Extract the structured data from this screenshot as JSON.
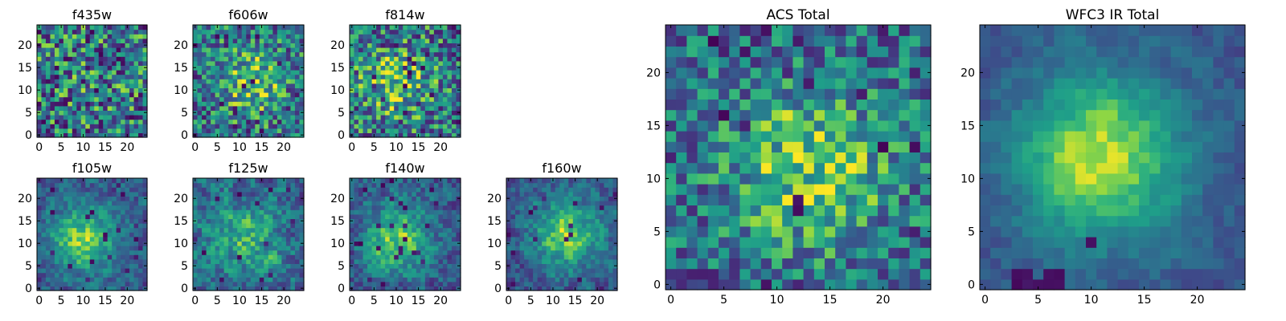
{
  "colormap": "viridis",
  "colors": {
    "low": "#440154",
    "mid_low": "#3b528b",
    "mid": "#21918c",
    "mid_high": "#5ec962",
    "high": "#fde725",
    "frame": "#000000",
    "background": "#ffffff"
  },
  "chart_data": [
    {
      "type": "heatmap",
      "title": "f435w",
      "grid": [
        25,
        25
      ],
      "xlim": [
        0,
        24
      ],
      "ylim": [
        0,
        24
      ],
      "xticks": [
        "0",
        "5",
        "10",
        "15",
        "20"
      ],
      "yticks": [
        "0",
        "5",
        "10",
        "15",
        "20"
      ],
      "texture": "noise",
      "center": [
        12,
        12
      ],
      "blob_strength": 0.05,
      "noise": 0.55,
      "base": 0.45,
      "seed": 11,
      "dark_pixels": 0.06,
      "grid_lines": false,
      "legend": "none"
    },
    {
      "type": "heatmap",
      "title": "f606w",
      "grid": [
        25,
        25
      ],
      "xlim": [
        0,
        24
      ],
      "ylim": [
        0,
        24
      ],
      "xticks": [
        "0",
        "5",
        "10",
        "15",
        "20"
      ],
      "yticks": [
        "0",
        "5",
        "10",
        "15",
        "20"
      ],
      "texture": "noise",
      "center": [
        13,
        12
      ],
      "blob_strength": 0.3,
      "noise": 0.45,
      "base": 0.45,
      "seed": 23,
      "dark_pixels": 0.04,
      "grid_lines": false,
      "legend": "none"
    },
    {
      "type": "heatmap",
      "title": "f814w",
      "grid": [
        25,
        25
      ],
      "xlim": [
        0,
        24
      ],
      "ylim": [
        0,
        24
      ],
      "xticks": [
        "0",
        "5",
        "10",
        "15",
        "20"
      ],
      "yticks": [
        "0",
        "5",
        "10",
        "15",
        "20"
      ],
      "texture": "noise",
      "center": [
        10,
        12
      ],
      "blob_strength": 0.3,
      "noise": 0.5,
      "base": 0.45,
      "seed": 37,
      "dark_pixels": 0.05,
      "grid_lines": false,
      "legend": "none"
    },
    {
      "type": "heatmap",
      "title": "f105w",
      "grid": [
        25,
        25
      ],
      "xlim": [
        0,
        24
      ],
      "ylim": [
        0,
        24
      ],
      "xticks": [
        "0",
        "5",
        "10",
        "15",
        "20"
      ],
      "yticks": [
        "0",
        "5",
        "10",
        "15",
        "20"
      ],
      "texture": "smooth",
      "center": [
        10,
        11
      ],
      "blob_strength": 0.55,
      "noise": 0.35,
      "base": 0.3,
      "seed": 41,
      "dark_pixels": 0.03,
      "grid_lines": false,
      "legend": "none"
    },
    {
      "type": "heatmap",
      "title": "f125w",
      "grid": [
        25,
        25
      ],
      "xlim": [
        0,
        24
      ],
      "ylim": [
        0,
        24
      ],
      "xticks": [
        "0",
        "5",
        "10",
        "15",
        "20"
      ],
      "yticks": [
        "0",
        "5",
        "10",
        "15",
        "20"
      ],
      "texture": "smooth",
      "center": [
        12,
        11
      ],
      "blob_strength": 0.3,
      "noise": 0.45,
      "base": 0.4,
      "seed": 53,
      "dark_pixels": 0.03,
      "grid_lines": false,
      "legend": "none"
    },
    {
      "type": "heatmap",
      "title": "f140w",
      "grid": [
        25,
        25
      ],
      "xlim": [
        0,
        24
      ],
      "ylim": [
        0,
        24
      ],
      "xticks": [
        "0",
        "5",
        "10",
        "15",
        "20"
      ],
      "yticks": [
        "0",
        "5",
        "10",
        "15",
        "20"
      ],
      "texture": "smooth",
      "center": [
        10,
        11
      ],
      "blob_strength": 0.5,
      "noise": 0.38,
      "base": 0.32,
      "seed": 67,
      "dark_pixels": 0.03,
      "grid_lines": false,
      "legend": "none"
    },
    {
      "type": "heatmap",
      "title": "f160w",
      "grid": [
        25,
        25
      ],
      "xlim": [
        0,
        24
      ],
      "ylim": [
        0,
        24
      ],
      "xticks": [
        "0",
        "5",
        "10",
        "15",
        "20"
      ],
      "yticks": [
        "0",
        "5",
        "10",
        "15",
        "20"
      ],
      "texture": "smooth",
      "center": [
        13,
        12
      ],
      "blob_strength": 0.55,
      "noise": 0.35,
      "base": 0.3,
      "seed": 79,
      "dark_pixels": 0.03,
      "grid_lines": false,
      "legend": "none"
    },
    {
      "type": "heatmap",
      "title": "ACS Total",
      "grid": [
        25,
        25
      ],
      "xlim": [
        0,
        24
      ],
      "ylim": [
        0,
        24
      ],
      "xticks": [
        "0",
        "5",
        "10",
        "15",
        "20"
      ],
      "yticks": [
        "0",
        "5",
        "10",
        "15",
        "20"
      ],
      "texture": "noise",
      "center": [
        13,
        11
      ],
      "blob_strength": 0.4,
      "noise": 0.4,
      "base": 0.4,
      "seed": 97,
      "dark_pixels": 0.035,
      "grid_lines": false,
      "legend": "none"
    },
    {
      "type": "heatmap",
      "title": "WFC3 IR Total",
      "grid": [
        25,
        25
      ],
      "xlim": [
        0,
        24
      ],
      "ylim": [
        0,
        24
      ],
      "xticks": [
        "0",
        "5",
        "10",
        "15",
        "20"
      ],
      "yticks": [
        "0",
        "5",
        "10",
        "15",
        "20"
      ],
      "texture": "smooth",
      "center": [
        11,
        12
      ],
      "blob_strength": 0.65,
      "noise": 0.18,
      "base": 0.3,
      "seed": 101,
      "dark_pixels": 0.0,
      "dark_region": [
        [
          3,
          0
        ],
        [
          4,
          0
        ],
        [
          5,
          0
        ],
        [
          6,
          0
        ],
        [
          7,
          0
        ],
        [
          3,
          1
        ],
        [
          4,
          1
        ],
        [
          6,
          1
        ],
        [
          7,
          1
        ],
        [
          10,
          4
        ]
      ],
      "grid_lines": false,
      "legend": "none"
    }
  ]
}
